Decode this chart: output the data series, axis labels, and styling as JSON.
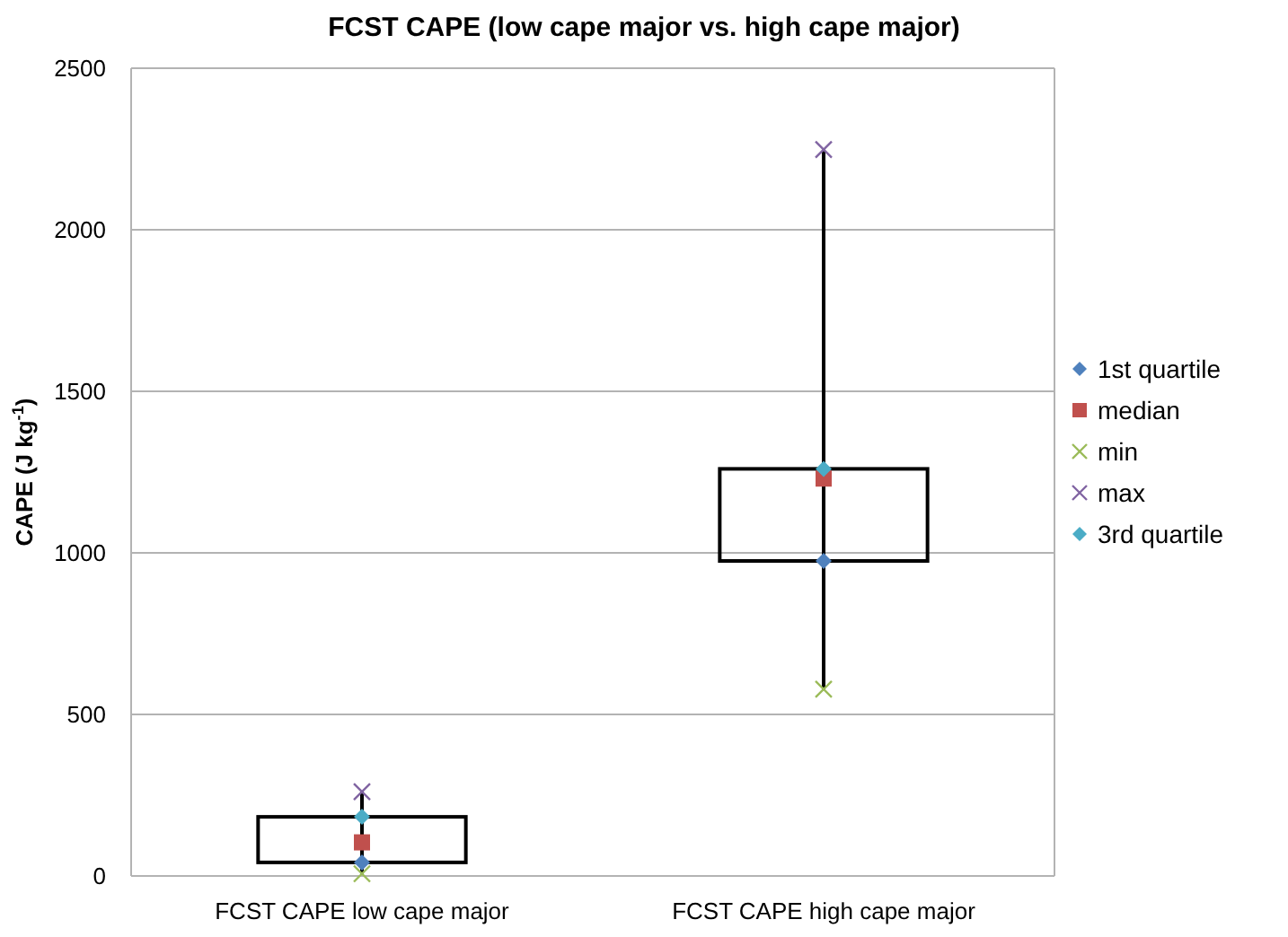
{
  "chart_data": {
    "type": "box",
    "title": "FCST CAPE (low cape major vs. high cape major)",
    "ylabel": "CAPE (J kg$^{-1}$)",
    "categories": [
      "FCST CAPE low cape major",
      "FCST CAPE high cape major"
    ],
    "boxes": [
      {
        "low": 7,
        "q1": 42,
        "q3": 183,
        "high": 261
      },
      {
        "low": 578,
        "q1": 975,
        "q3": 1260,
        "high": 2248
      }
    ],
    "series": [
      {
        "name": "1st quartile",
        "type": "scatter",
        "marker": "diamond",
        "color": "#4f81bd",
        "x": [
          "FCST CAPE low cape major",
          "FCST CAPE high cape major"
        ],
        "values": [
          42,
          975
        ]
      },
      {
        "name": "median",
        "type": "scatter",
        "marker": "square",
        "color": "#c0504d",
        "x": [
          "FCST CAPE low cape major",
          "FCST CAPE high cape major"
        ],
        "values": [
          104,
          1230
        ]
      },
      {
        "name": "min",
        "type": "scatter",
        "marker": "cross",
        "color": "#9bbb59",
        "x": [
          "FCST CAPE low cape major",
          "FCST CAPE high cape major"
        ],
        "values": [
          7,
          578
        ]
      },
      {
        "name": "max",
        "type": "scatter",
        "marker": "cross",
        "color": "#8064a2",
        "x": [
          "FCST CAPE low cape major",
          "FCST CAPE high cape major"
        ],
        "values": [
          261,
          2248
        ]
      },
      {
        "name": "3rd quartile",
        "type": "scatter",
        "marker": "diamond",
        "color": "#4bacc6",
        "x": [
          "FCST CAPE low cape major",
          "FCST CAPE high cape major"
        ],
        "values": [
          183,
          1260
        ]
      }
    ],
    "ylim": [
      0,
      2500
    ],
    "yticks": [
      0,
      500,
      1000,
      1500,
      2000,
      2500
    ],
    "grid": "y",
    "legend": "right"
  }
}
